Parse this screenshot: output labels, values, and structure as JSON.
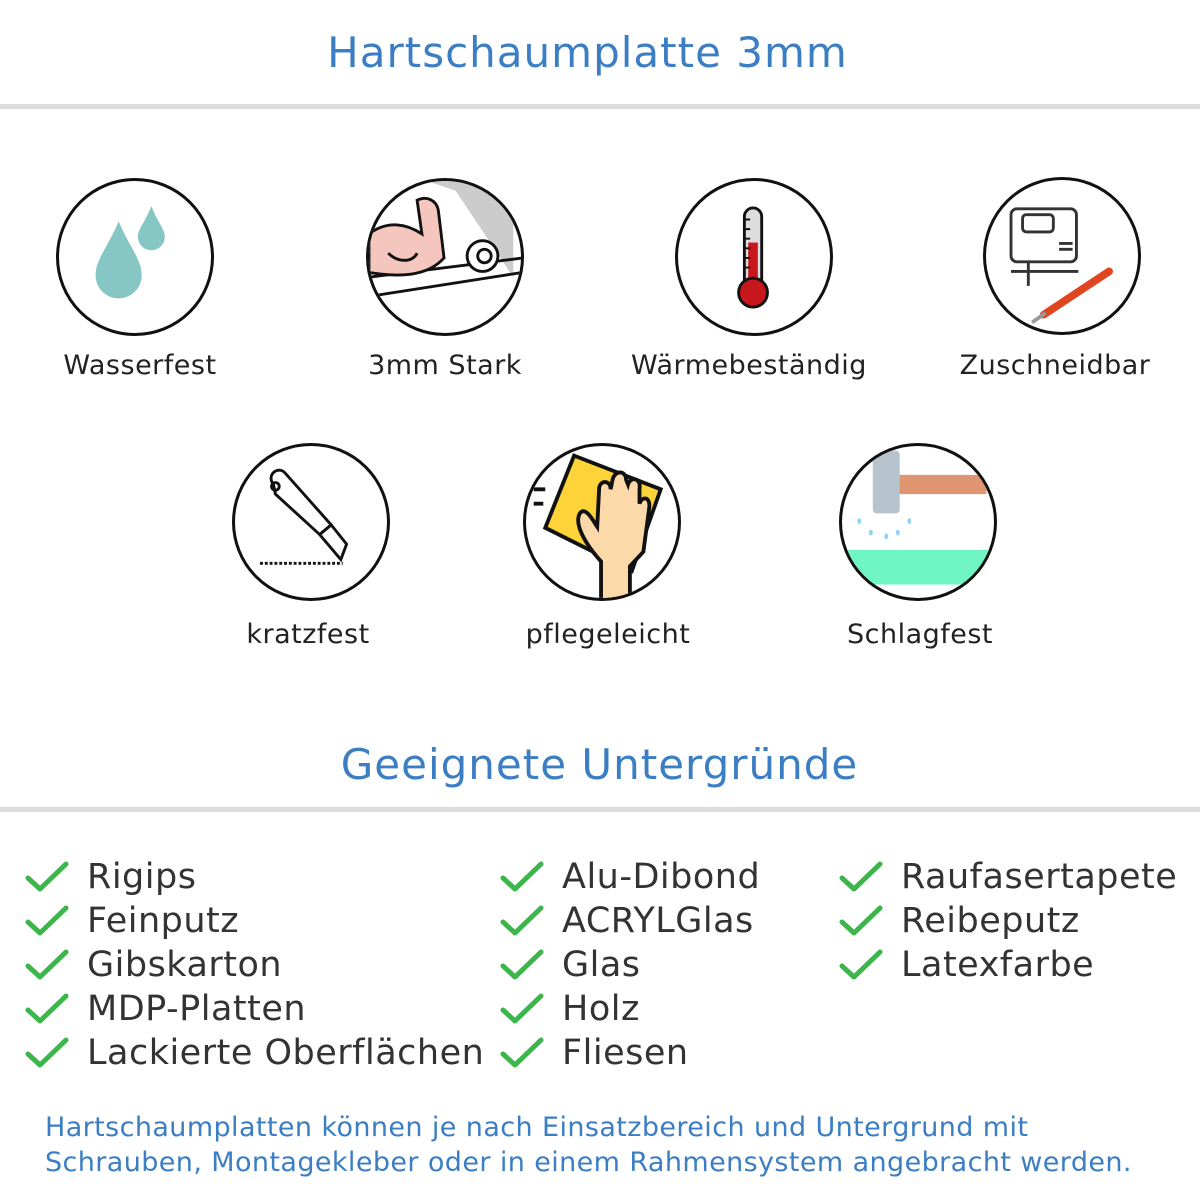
{
  "title": "Hartschaumplatte 3mm",
  "features": [
    {
      "label": "Wasserfest",
      "icon": "water-drops-icon"
    },
    {
      "label": "3mm Stark",
      "icon": "strong-arm-icon"
    },
    {
      "label": "Wärmebeständig",
      "icon": "thermometer-icon"
    },
    {
      "label": "Zuschneidbar",
      "icon": "jigsaw-knife-icon"
    },
    {
      "label": "kratzfest",
      "icon": "cutter-knife-icon"
    },
    {
      "label": "pflegeleicht",
      "icon": "hand-cloth-icon"
    },
    {
      "label": "Schlagfest",
      "icon": "hammer-icon"
    }
  ],
  "surfaces_heading": "Geeignete Untergründe",
  "surfaces": [
    [
      "Rigips",
      "Feinputz",
      "Gibskarton",
      "MDP-Platten",
      "Lackierte Oberflächen"
    ],
    [
      "Alu-Dibond",
      "ACRYLGlas",
      "Glas",
      "Holz",
      "Fliesen"
    ],
    [
      "Raufasertapete",
      "Reibeputz",
      "Latexfarbe"
    ]
  ],
  "footer": [
    "Hartschaumplatten können je nach Einsatzbereich und Untergrund mit",
    "Schrauben, Montagekleber oder in einem Rahmensystem angebracht werden."
  ],
  "colors": {
    "accent": "#3b7ec4",
    "check": "#3cb54a"
  }
}
